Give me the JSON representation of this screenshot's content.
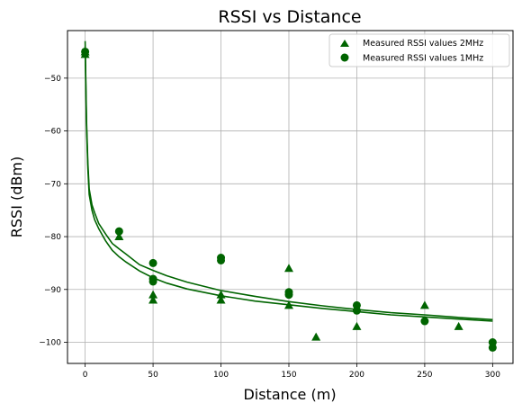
{
  "chart_data": {
    "type": "scatter",
    "title": "RSSI vs Distance",
    "xlabel": "Distance (m)",
    "ylabel": "RSSI (dBm)",
    "xlim": [
      -13,
      315
    ],
    "ylim": [
      -104,
      -41
    ],
    "x_ticks": [
      0,
      50,
      100,
      150,
      200,
      250,
      300
    ],
    "y_ticks": [
      -100,
      -90,
      -80,
      -70,
      -60,
      -50
    ],
    "grid": true,
    "legend_position": "top-right",
    "color": "#006400",
    "series": [
      {
        "name": "Measured RSSI values 2MHz",
        "marker": "triangle",
        "points": [
          [
            0,
            -45
          ],
          [
            0,
            -45.5
          ],
          [
            25,
            -80
          ],
          [
            50,
            -91
          ],
          [
            50,
            -92
          ],
          [
            100,
            -91
          ],
          [
            100,
            -92
          ],
          [
            150,
            -86
          ],
          [
            150,
            -93
          ],
          [
            170,
            -99
          ],
          [
            200,
            -97
          ],
          [
            250,
            -93
          ],
          [
            275,
            -97
          ]
        ]
      },
      {
        "name": "Measured RSSI values 1MHz",
        "marker": "circle",
        "points": [
          [
            0,
            -45
          ],
          [
            25,
            -79
          ],
          [
            50,
            -85
          ],
          [
            50,
            -88
          ],
          [
            50,
            -88.5
          ],
          [
            100,
            -84
          ],
          [
            100,
            -84.5
          ],
          [
            150,
            -90.5
          ],
          [
            150,
            -91
          ],
          [
            200,
            -93
          ],
          [
            200,
            -94
          ],
          [
            250,
            -96
          ],
          [
            300,
            -100
          ],
          [
            300,
            -101
          ]
        ]
      }
    ],
    "fit_curves": [
      {
        "for": "Measured RSSI values 2MHz",
        "points": [
          [
            0,
            -43
          ],
          [
            1,
            -58
          ],
          [
            2,
            -66
          ],
          [
            3,
            -71
          ],
          [
            5,
            -74
          ],
          [
            7,
            -75.5
          ],
          [
            10,
            -77.5
          ],
          [
            15,
            -79.5
          ],
          [
            20,
            -81.3
          ],
          [
            25,
            -82.3
          ],
          [
            30,
            -83.3
          ],
          [
            40,
            -85.3
          ],
          [
            50,
            -86.4
          ],
          [
            60,
            -87.4
          ],
          [
            75,
            -88.6
          ],
          [
            100,
            -90.2
          ],
          [
            125,
            -91.3
          ],
          [
            150,
            -92.3
          ],
          [
            175,
            -93.1
          ],
          [
            200,
            -93.8
          ],
          [
            225,
            -94.4
          ],
          [
            250,
            -94.8
          ],
          [
            275,
            -95.3
          ],
          [
            300,
            -95.7
          ]
        ]
      },
      {
        "for": "Measured RSSI values 1MHz",
        "points": [
          [
            0,
            -44
          ],
          [
            1,
            -59
          ],
          [
            2,
            -67
          ],
          [
            3,
            -72
          ],
          [
            5,
            -75
          ],
          [
            7,
            -76.8
          ],
          [
            10,
            -78.5
          ],
          [
            15,
            -80.8
          ],
          [
            20,
            -82.6
          ],
          [
            25,
            -83.8
          ],
          [
            30,
            -84.8
          ],
          [
            40,
            -86.5
          ],
          [
            50,
            -87.8
          ],
          [
            60,
            -88.8
          ],
          [
            75,
            -89.9
          ],
          [
            100,
            -91.2
          ],
          [
            125,
            -92.2
          ],
          [
            150,
            -92.9
          ],
          [
            175,
            -93.6
          ],
          [
            200,
            -94.2
          ],
          [
            225,
            -94.8
          ],
          [
            250,
            -95.2
          ],
          [
            275,
            -95.6
          ],
          [
            300,
            -96
          ]
        ]
      }
    ]
  }
}
